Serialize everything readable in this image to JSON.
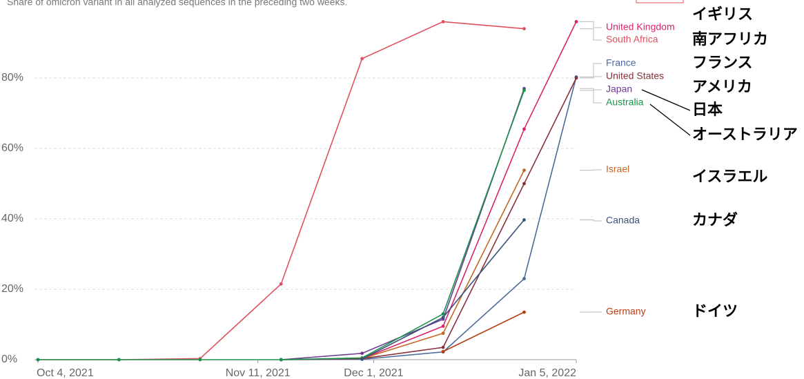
{
  "chart_data": {
    "type": "line",
    "subtitle": "Share of omicron variant in all analyzed sequences in the preceding two weeks.",
    "x": [
      "2021-10-04",
      "2021-10-18",
      "2021-11-01",
      "2021-11-15",
      "2021-11-29",
      "2021-12-13",
      "2021-12-27",
      "2022-01-05"
    ],
    "xlim": [
      "2021-10-04",
      "2022-01-05"
    ],
    "xticks": [
      {
        "value": "2021-10-04",
        "label": "Oct 4, 2021"
      },
      {
        "value": "2021-11-11",
        "label": "Nov 11, 2021"
      },
      {
        "value": "2021-12-01",
        "label": "Dec 1, 2021"
      },
      {
        "value": "2022-01-05",
        "label": "Jan 5, 2022"
      }
    ],
    "ylim": [
      0,
      100
    ],
    "yticks": [
      {
        "value": 0,
        "label": "0%"
      },
      {
        "value": 20,
        "label": "20%"
      },
      {
        "value": 40,
        "label": "40%"
      },
      {
        "value": 60,
        "label": "60%"
      },
      {
        "value": 80,
        "label": "80%"
      }
    ],
    "grid": true,
    "series": [
      {
        "name": "United Kingdom",
        "color": "#d6246e",
        "values": [
          null,
          null,
          null,
          0,
          0.3,
          9.5,
          65.5,
          96
        ]
      },
      {
        "name": "South Africa",
        "color": "#e0505f",
        "values": [
          0,
          0,
          0.3,
          21.5,
          85.5,
          96,
          94,
          null
        ]
      },
      {
        "name": "France",
        "color": "#4c6a9c",
        "values": [
          null,
          null,
          null,
          0,
          0.1,
          2.2,
          23,
          80.3
        ]
      },
      {
        "name": "United States",
        "color": "#883039",
        "values": [
          null,
          null,
          null,
          0,
          0.3,
          3.5,
          50,
          80
        ]
      },
      {
        "name": "Japan",
        "color": "#6d3e91",
        "values": [
          null,
          null,
          null,
          0,
          1.8,
          11.5,
          77,
          null
        ]
      },
      {
        "name": "Australia",
        "color": "#18944a",
        "values": [
          0,
          0,
          0,
          0,
          0.5,
          13,
          76.5,
          null
        ]
      },
      {
        "name": "Israel",
        "color": "#c4661f",
        "values": [
          null,
          null,
          null,
          null,
          0.3,
          7.5,
          53.8,
          null
        ]
      },
      {
        "name": "Canada",
        "color": "#38507a",
        "values": [
          null,
          null,
          null,
          null,
          0.2,
          12,
          39.7,
          null
        ]
      },
      {
        "name": "Germany",
        "color": "#b73d11",
        "values": [
          null,
          null,
          null,
          null,
          null,
          2.3,
          13.5,
          null
        ]
      }
    ],
    "annotations": [
      "イギリス",
      "南アフリカ",
      "フランス",
      "アメリカ",
      "日本",
      "オーストラリア",
      "イスラエル",
      "カナダ",
      "ドイツ"
    ]
  }
}
